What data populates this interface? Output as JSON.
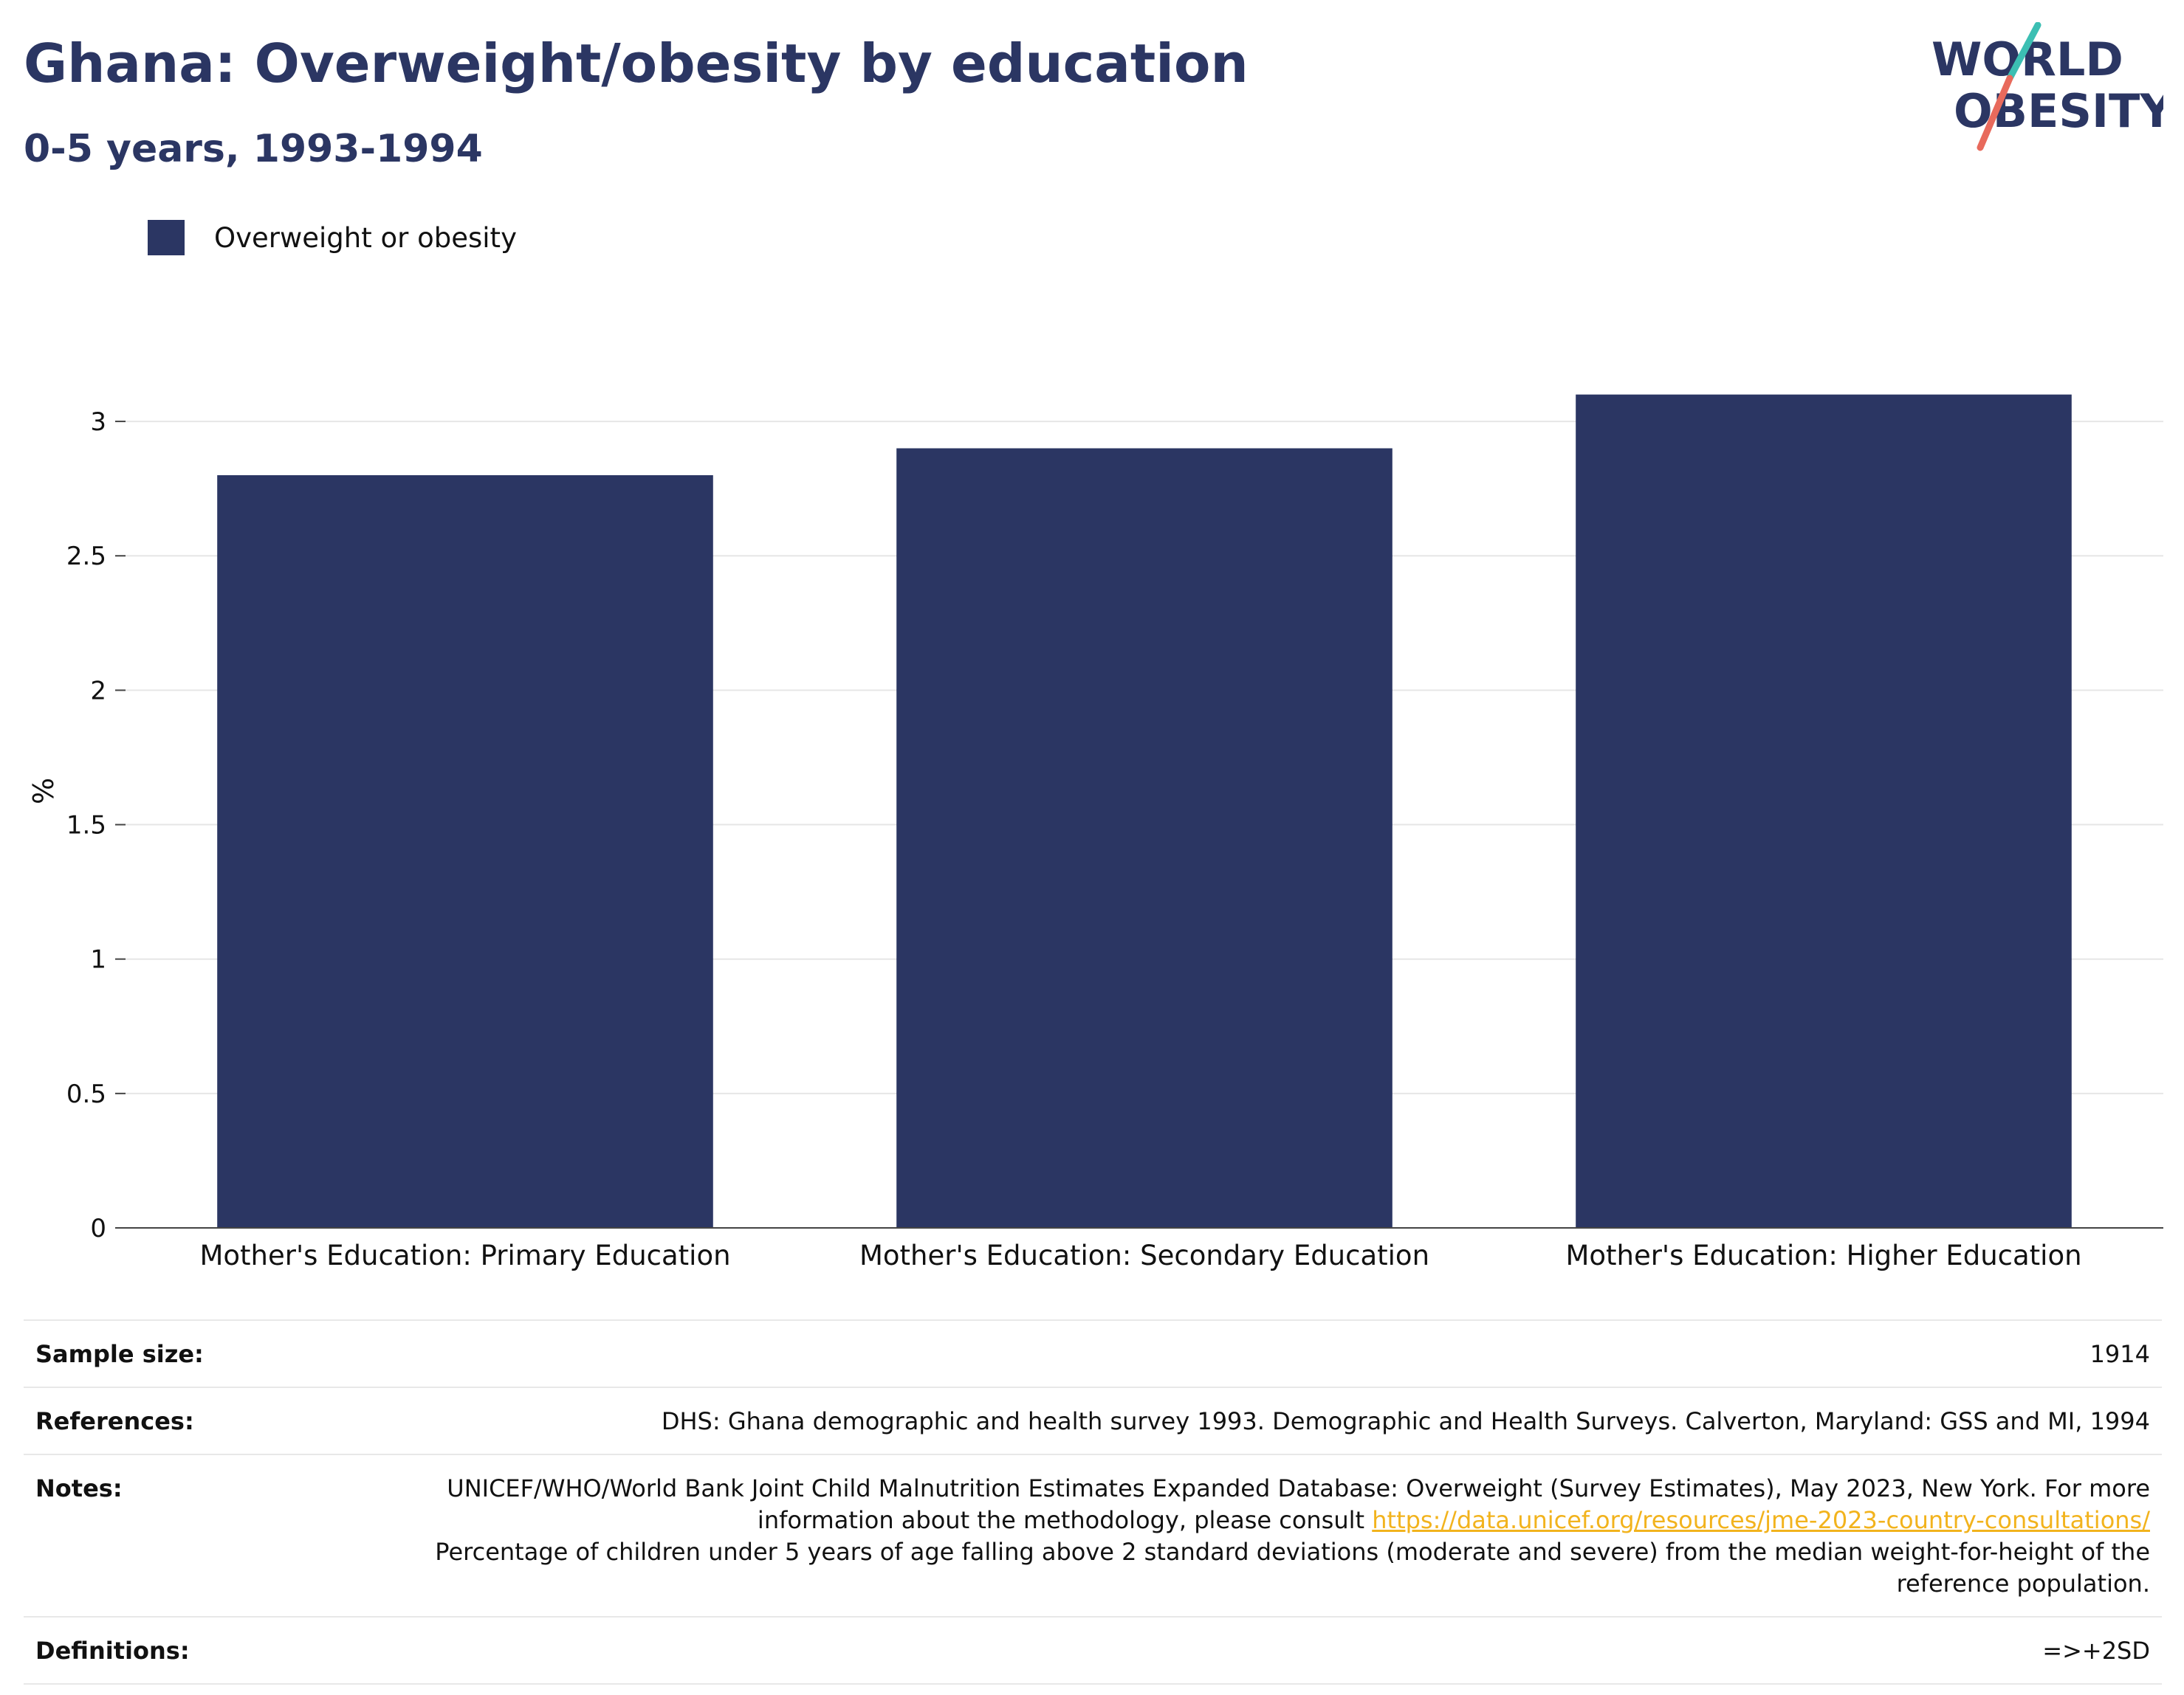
{
  "title": "Ghana: Overweight/obesity by education",
  "subtitle": "0-5 years, 1993-1994",
  "logo": {
    "line1": "WORLD",
    "line2": "OBESITY",
    "colors": {
      "text": "#2b3663",
      "slash_top": "#3cbfb3",
      "slash_bottom": "#e86a5c"
    }
  },
  "legend": {
    "label": "Overweight or obesity",
    "color": "#2b3663"
  },
  "chart_data": {
    "type": "bar",
    "categories": [
      "Mother's Education: Primary Education",
      "Mother's Education: Secondary Education",
      "Mother's Education: Higher Education"
    ],
    "series": [
      {
        "name": "Overweight or obesity",
        "values": [
          2.8,
          2.9,
          3.1
        ],
        "color": "#2b3663"
      }
    ],
    "title": "Ghana: Overweight/obesity by education",
    "subtitle": "0-5 years, 1993-1994",
    "xlabel": "",
    "ylabel": "%",
    "ylim": [
      0,
      3.25
    ],
    "yticks": [
      0,
      0.5,
      1,
      1.5,
      2,
      2.5,
      3
    ],
    "ytick_labels": [
      "0",
      "0.5",
      "1",
      "1.5",
      "2",
      "2.5",
      "3"
    ],
    "grid": true,
    "legend_position": "top-left"
  },
  "info": {
    "sample_size_label": "Sample size:",
    "sample_size_value": "1914",
    "references_label": "References:",
    "references_value": "DHS: Ghana demographic and health survey 1993. Demographic and Health Surveys. Calverton, Maryland: GSS and MI, 1994",
    "notes_label": "Notes:",
    "notes_text_1": "UNICEF/WHO/World Bank Joint Child Malnutrition Estimates Expanded Database: Overweight (Survey Estimates), May 2023, New York. For more information about the methodology, please consult ",
    "notes_link": "https://data.unicef.org/resources/jme-2023-country-consultations/",
    "notes_text_2": "Percentage of children under 5 years of age falling above 2 standard deviations (moderate and severe) from the median weight-for-height of the reference population.",
    "definitions_label": "Definitions:",
    "definitions_value": "=>+2SD",
    "link_color": "#f2b31d"
  }
}
